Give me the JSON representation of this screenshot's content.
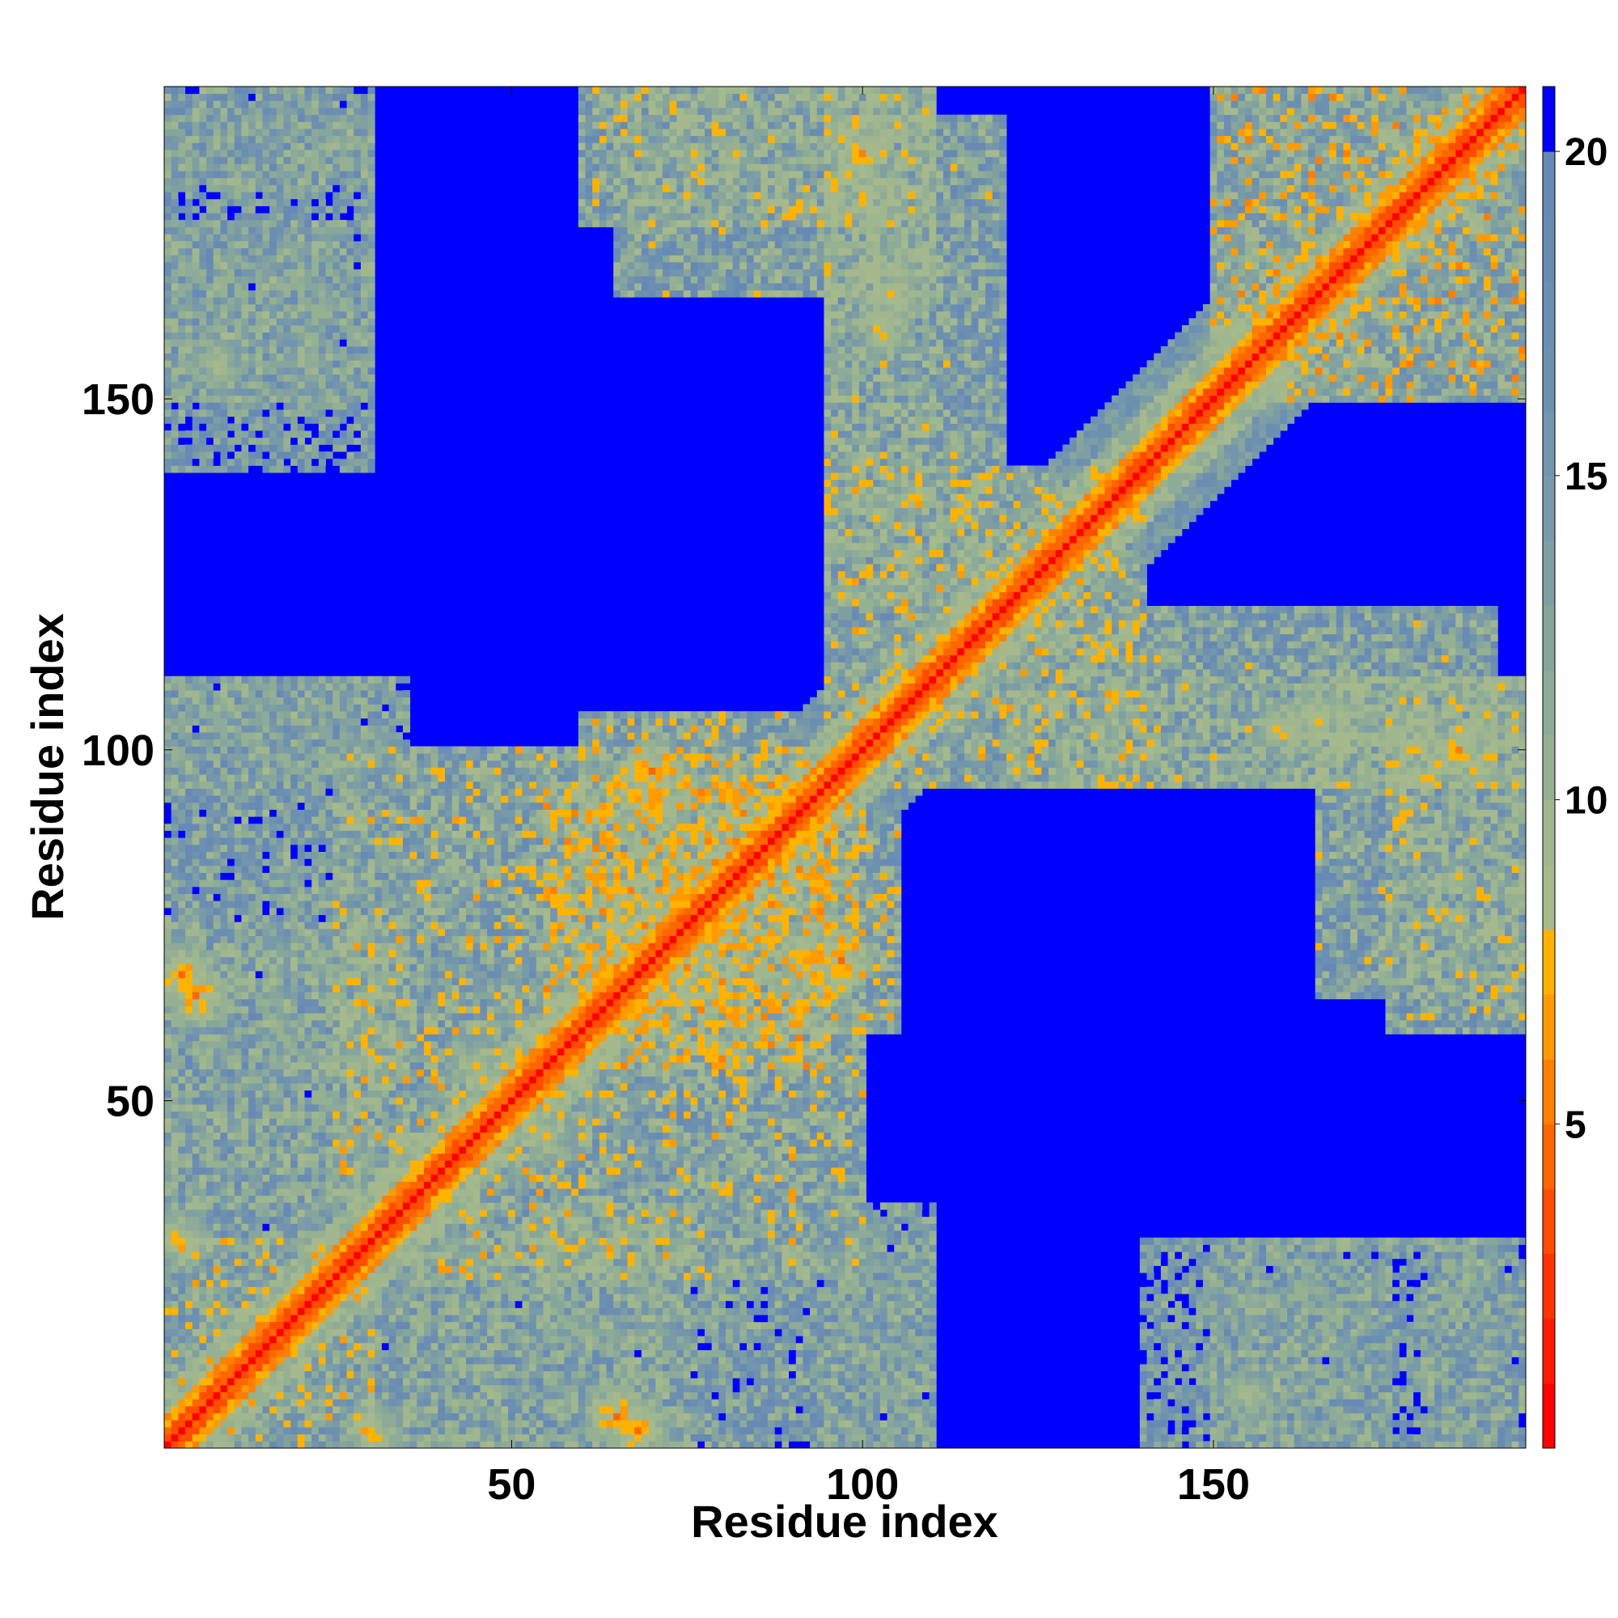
{
  "chart_data": {
    "type": "heatmap",
    "title": "",
    "xlabel": "Residue index",
    "ylabel": "Residue index",
    "n_residues": 194,
    "x_range": [
      1,
      194
    ],
    "y_range": [
      1,
      194
    ],
    "x_ticks": [
      50,
      100,
      150
    ],
    "x_tick_labels": [
      "50",
      "100",
      "150"
    ],
    "y_ticks": [
      50,
      100,
      150
    ],
    "y_tick_labels": [
      "50",
      "100",
      "150"
    ],
    "colorbar": {
      "range": [
        0,
        21
      ],
      "ticks": [
        5,
        10,
        15,
        20
      ],
      "tick_labels": [
        "5",
        "10",
        "15",
        "20"
      ],
      "levels": [
        {
          "max": 1,
          "color": "#ff0000"
        },
        {
          "max": 2,
          "color": "#ff1a00"
        },
        {
          "max": 3,
          "color": "#ff3300"
        },
        {
          "max": 4,
          "color": "#ff4d00"
        },
        {
          "max": 5,
          "color": "#ff6600"
        },
        {
          "max": 6,
          "color": "#ff8000"
        },
        {
          "max": 7,
          "color": "#ff9a00"
        },
        {
          "max": 8,
          "color": "#ffb300"
        },
        {
          "max": 9,
          "color": "#a6b98d"
        },
        {
          "max": 10,
          "color": "#9fb68f"
        },
        {
          "max": 11,
          "color": "#96b192"
        },
        {
          "max": 12,
          "color": "#8dab98"
        },
        {
          "max": 13,
          "color": "#86a69c"
        },
        {
          "max": 14,
          "color": "#7f9fa3"
        },
        {
          "max": 15,
          "color": "#789aa9"
        },
        {
          "max": 16,
          "color": "#7395ad"
        },
        {
          "max": 17,
          "color": "#6e91b0"
        },
        {
          "max": 18,
          "color": "#6b8eb2"
        },
        {
          "max": 19,
          "color": "#688bb4"
        },
        {
          "max": 20,
          "color": "#6689b6"
        },
        {
          "max": 21,
          "color": "#0000ff"
        }
      ]
    },
    "grid": false,
    "legend": "colorbar-right",
    "background_color": "#0000ff",
    "diagonal_color": "#ff0000",
    "contact_blocks": [
      {
        "x": [
          1,
          30
        ],
        "y": [
          1,
          30
        ],
        "d": 11
      },
      {
        "x": [
          1,
          30
        ],
        "y": [
          30,
          70
        ],
        "d": 13
      },
      {
        "x": [
          1,
          30
        ],
        "y": [
          70,
          110
        ],
        "d": 13
      },
      {
        "x": [
          1,
          30
        ],
        "y": [
          140,
          190
        ],
        "d": 14
      },
      {
        "x": [
          25,
          95
        ],
        "y": [
          40,
          100
        ],
        "d": 11
      },
      {
        "x": [
          55,
          95
        ],
        "y": [
          55,
          95
        ],
        "d": 10
      },
      {
        "x": [
          35,
          75
        ],
        "y": [
          1,
          35
        ],
        "d": 13
      },
      {
        "x": [
          60,
          90
        ],
        "y": [
          60,
          105
        ],
        "d": 11
      },
      {
        "x": [
          95,
          120
        ],
        "y": [
          120,
          190
        ],
        "d": 12
      },
      {
        "x": [
          95,
          135
        ],
        "y": [
          95,
          140
        ],
        "d": 11
      },
      {
        "x": [
          65,
          110
        ],
        "y": [
          165,
          194
        ],
        "d": 12
      },
      {
        "x": [
          135,
          194
        ],
        "y": [
          95,
          110
        ],
        "d": 12
      },
      {
        "x": [
          175,
          194
        ],
        "y": [
          60,
          110
        ],
        "d": 12
      },
      {
        "x": [
          150,
          194
        ],
        "y": [
          150,
          194
        ],
        "d": 10
      },
      {
        "x": [
          150,
          175
        ],
        "y": [
          1,
          30
        ],
        "d": 13
      },
      {
        "x": [
          180,
          194
        ],
        "y": [
          1,
          30
        ],
        "d": 13
      },
      {
        "x": [
          95,
          110
        ],
        "y": [
          1,
          35
        ],
        "d": 14
      }
    ],
    "hotspots": [
      {
        "x": 70,
        "y": 97,
        "d": 4
      },
      {
        "x": 93,
        "y": 70,
        "d": 4
      },
      {
        "x": 105,
        "y": 165,
        "d": 6
      },
      {
        "x": 150,
        "y": 150,
        "d": 4
      },
      {
        "x": 185,
        "y": 100,
        "d": 5
      },
      {
        "x": 160,
        "y": 103,
        "d": 6
      },
      {
        "x": 3,
        "y": 68,
        "d": 4
      },
      {
        "x": 3,
        "y": 30,
        "d": 5
      },
      {
        "x": 65,
        "y": 5,
        "d": 4
      },
      {
        "x": 45,
        "y": 55,
        "d": 6
      },
      {
        "x": 8,
        "y": 155,
        "d": 7
      }
    ],
    "annotations": []
  }
}
